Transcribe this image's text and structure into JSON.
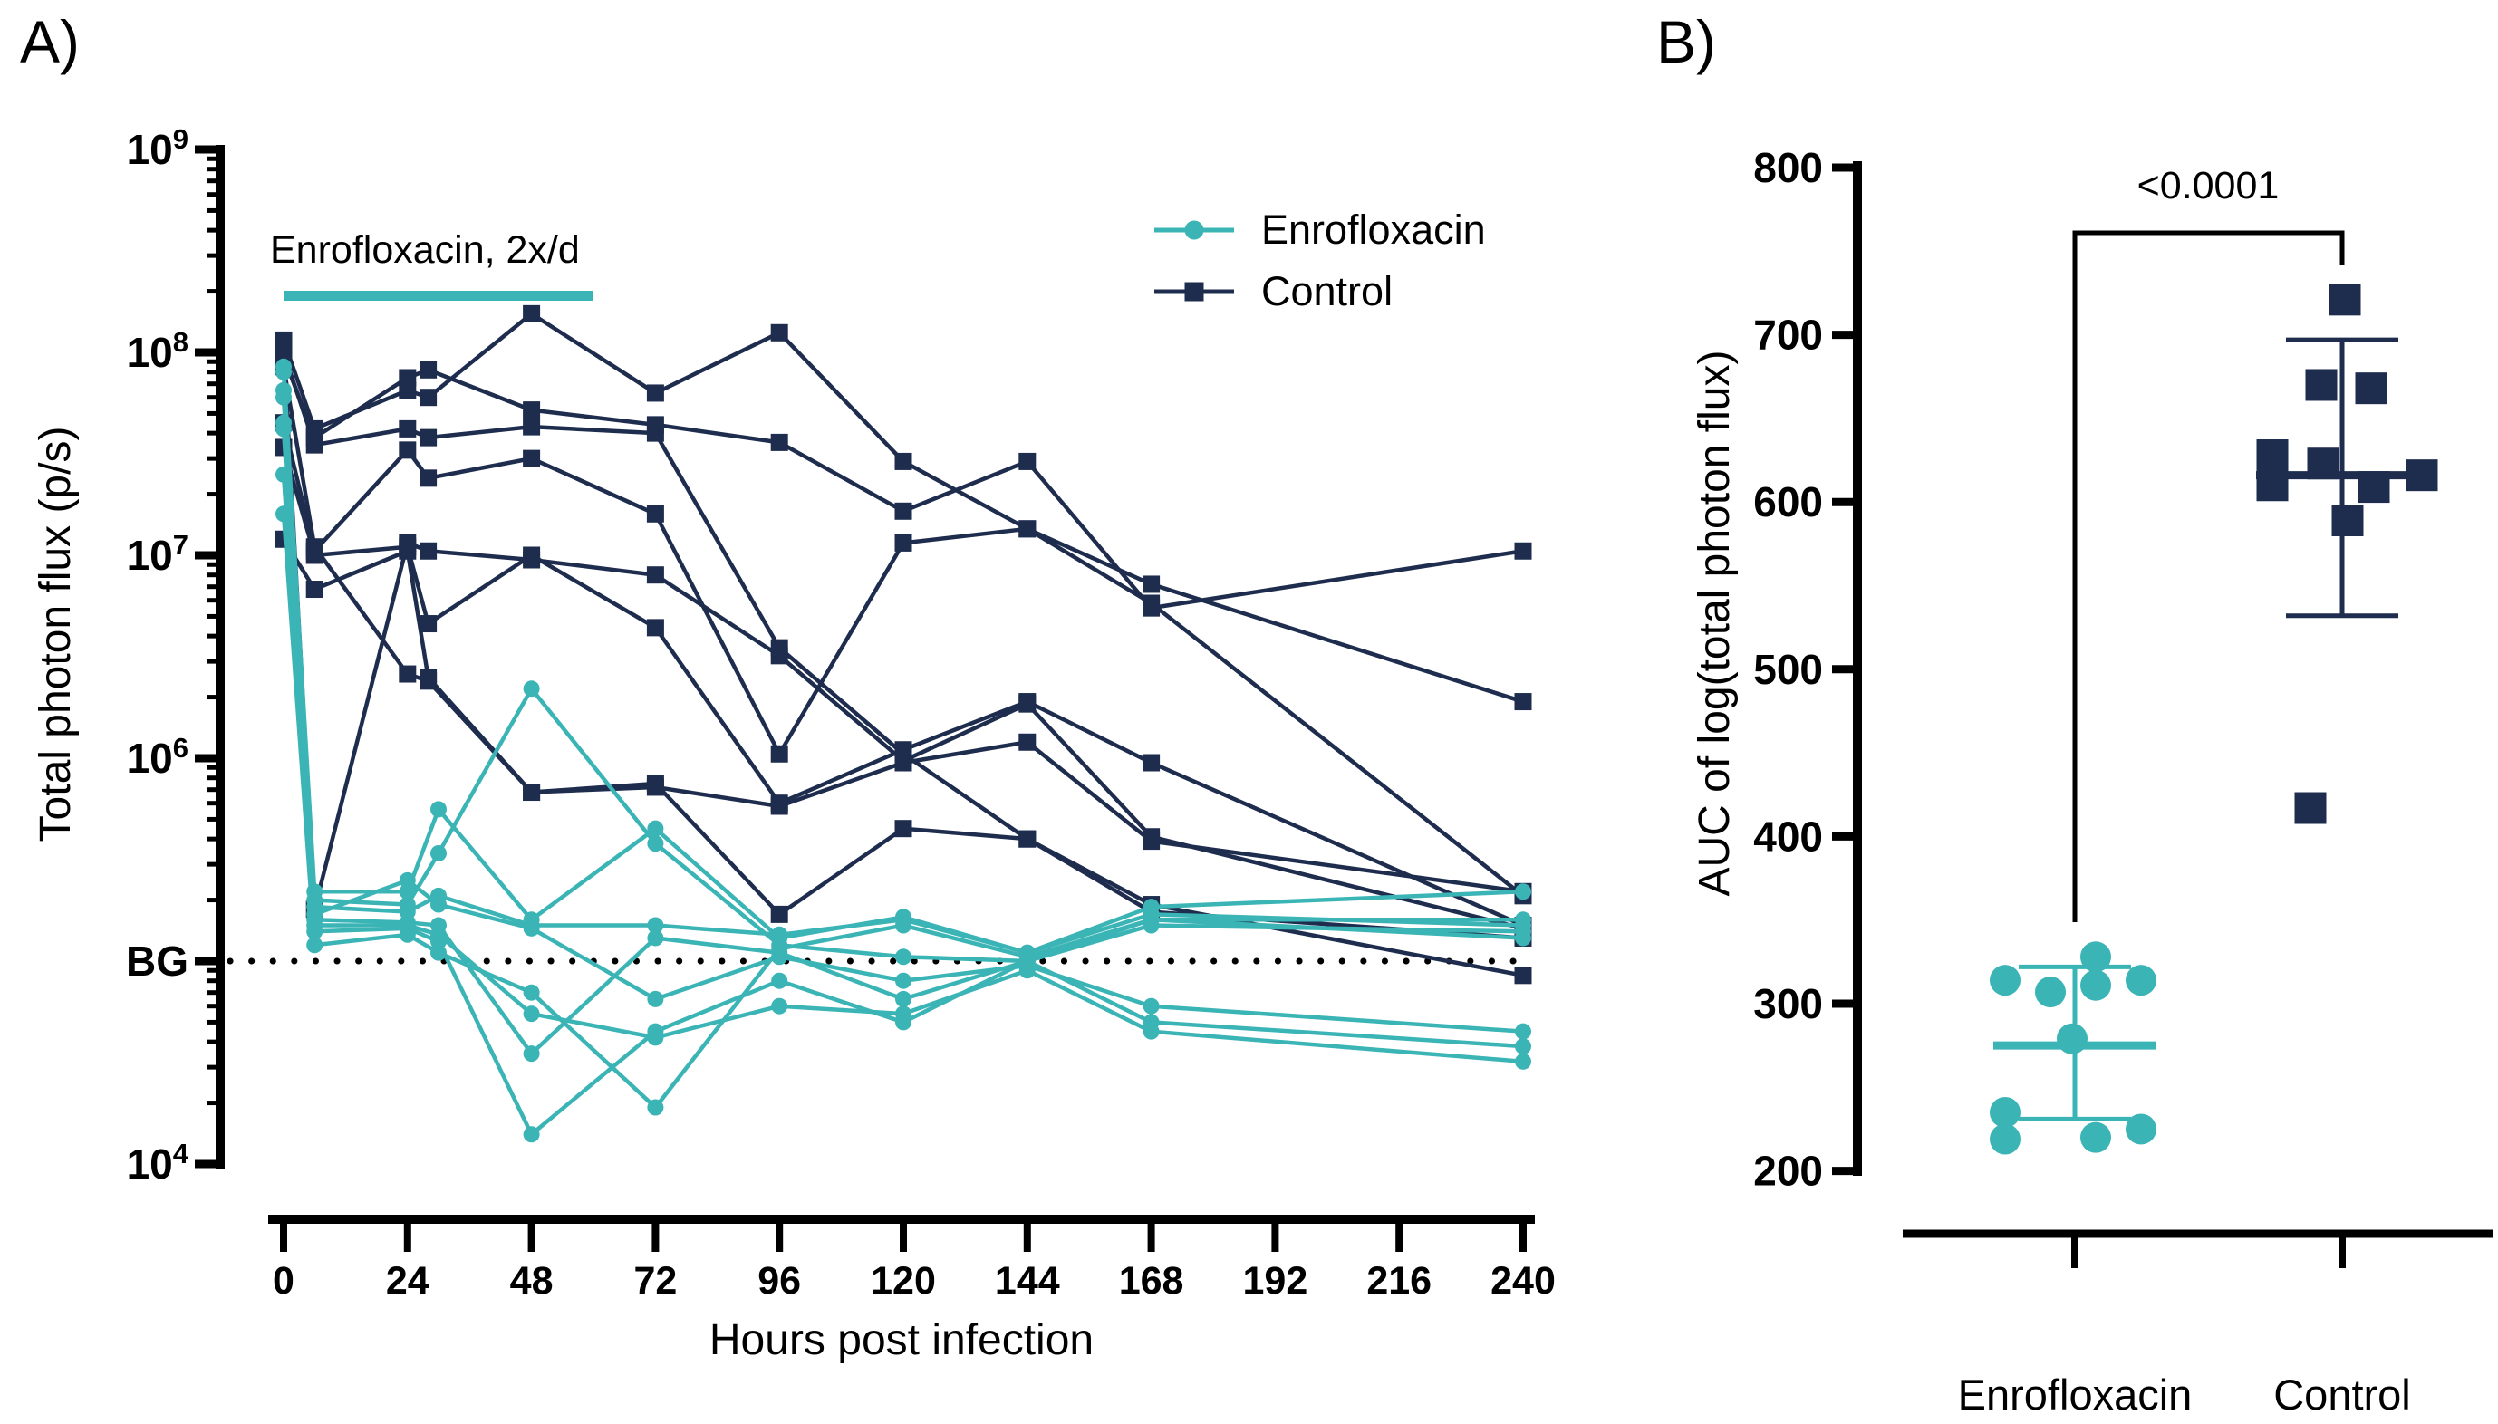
{
  "figure": {
    "panel_a_label": "A)",
    "panel_b_label": "B)",
    "colors": {
      "teal": "#3BB4B6",
      "navy": "#1E2C4E",
      "axis": "#000000"
    }
  },
  "chart_data": [
    {
      "id": "panelA",
      "type": "line",
      "xlabel": "Hours post infection",
      "ylabel": "Total photon flux (p/s)",
      "x_ticks": [
        0,
        24,
        48,
        72,
        96,
        120,
        144,
        168,
        192,
        216,
        240
      ],
      "xlim": [
        0,
        240
      ],
      "ylim_log10": [
        4,
        9
      ],
      "y_ticks": [
        {
          "base": "10",
          "exp": "9",
          "value": 1000000000.0
        },
        {
          "base": "10",
          "exp": "8",
          "value": 100000000.0
        },
        {
          "base": "10",
          "exp": "7",
          "value": 10000000.0
        },
        {
          "base": "10",
          "exp": "6",
          "value": 1000000.0
        },
        {
          "base": "BG",
          "exp": "",
          "value": 100000.0
        },
        {
          "base": "10",
          "exp": "4",
          "value": 10000.0
        }
      ],
      "bg_line_value": 100000.0,
      "treatment": {
        "label": "Enrofloxacin, 2x/d",
        "start_hour": 0,
        "end_hour": 60
      },
      "legend": [
        {
          "label": "Enrofloxacin",
          "marker": "circle",
          "color": "teal"
        },
        {
          "label": "Control",
          "marker": "square",
          "color": "navy"
        }
      ],
      "hours": {
        "enrofloxacin": [
          0,
          6,
          24,
          30,
          48,
          72,
          96,
          120,
          144,
          168,
          240
        ],
        "control": [
          0,
          6,
          24,
          28,
          48,
          72,
          96,
          120,
          144,
          168,
          240
        ]
      },
      "series": [
        {
          "group": "enrofloxacin",
          "values": [
            85000000.0,
            220000.0,
            220000.0,
            560000.0,
            160000.0,
            450000.0,
            130000.0,
            165000.0,
            110000.0,
            185000.0,
            220000.0
          ]
        },
        {
          "group": "enrofloxacin",
          "values": [
            80000000.0,
            200000.0,
            190000.0,
            340000.0,
            2200000.0,
            380000.0,
            120000.0,
            105000.0,
            100000.0,
            160000.0,
            160000.0
          ]
        },
        {
          "group": "enrofloxacin",
          "values": [
            65000000.0,
            185000.0,
            175000.0,
            210000.0,
            150000.0,
            150000.0,
            135000.0,
            160000.0,
            110000.0,
            170000.0,
            150000.0
          ]
        },
        {
          "group": "enrofloxacin",
          "values": [
            60000000.0,
            170000.0,
            250000.0,
            190000.0,
            145000.0,
            65000.0,
            105000.0,
            80000.0,
            95000.0,
            60000.0,
            45000.0
          ]
        },
        {
          "group": "enrofloxacin",
          "values": [
            45000000.0,
            160000.0,
            155000.0,
            150000.0,
            35000.0,
            130000.0,
            110000.0,
            65000.0,
            100000.0,
            50000.0,
            38000.0
          ]
        },
        {
          "group": "enrofloxacin",
          "values": [
            42000000.0,
            150000.0,
            150000.0,
            135000.0,
            55000.0,
            42000.0,
            60000.0,
            55000.0,
            90000.0,
            45000.0,
            32000.0
          ]
        },
        {
          "group": "enrofloxacin",
          "values": [
            25000000.0,
            140000.0,
            145000.0,
            125000.0,
            14000.0,
            45000.0,
            80000.0,
            50000.0,
            100000.0,
            150000.0,
            140000.0
          ]
        },
        {
          "group": "enrofloxacin",
          "values": [
            16000000.0,
            120000.0,
            135000.0,
            110000.0,
            70000.0,
            19000.0,
            115000.0,
            150000.0,
            105000.0,
            160000.0,
            130000.0
          ]
        },
        {
          "group": "control",
          "values": [
            115000000.0,
            42000000.0,
            65000000.0,
            60000000.0,
            155000000.0,
            63000000.0,
            125000000.0,
            29000000.0,
            13500000.0,
            7200000.0,
            1900000.0
          ]
        },
        {
          "group": "control",
          "values": [
            95000000.0,
            38000000.0,
            75000000.0,
            82000000.0,
            52000000.0,
            44000000.0,
            36000000.0,
            16500000.0,
            29000000.0,
            5500000.0,
            10500000.0
          ]
        },
        {
          "group": "control",
          "values": [
            45000000.0,
            10500000.0,
            33000000.0,
            24000000.0,
            30000000.0,
            16000000.0,
            1050000.0,
            11500000.0,
            13500000.0,
            5800000.0,
            210000.0
          ]
        },
        {
          "group": "control",
          "values": [
            34000000.0,
            10000000.0,
            11000000.0,
            4600000.0,
            10000000.0,
            4400000.0,
            600000.0,
            1100000.0,
            1900000.0,
            950000.0,
            150000.0
          ]
        },
        {
          "group": "control",
          "values": [
            12000000.0,
            6800000.0,
            10500000.0,
            2500000.0,
            680000.0,
            750000.0,
            170000.0,
            450000.0,
            400000.0,
            190000.0,
            85000.0
          ]
        },
        {
          "group": "control",
          "values": [
            100000000.0,
            35000000.0,
            42000000.0,
            38000000.0,
            43000000.0,
            40000000.0,
            3500000.0,
            1050000.0,
            400000.0,
            175000.0,
            130000.0
          ]
        },
        {
          "group": "control",
          "values": [
            85000000.0,
            11000000.0,
            2600000.0,
            2400000.0,
            680000.0,
            720000.0,
            580000.0,
            950000.0,
            1200000.0,
            390000.0,
            220000.0
          ]
        },
        {
          "group": "control",
          "values": [
            105000000.0,
            180000.0,
            11500000.0,
            10500000.0,
            9500000.0,
            8000000.0,
            3200000.0,
            970000.0,
            1850000.0,
            410000.0,
            145000.0
          ]
        }
      ]
    },
    {
      "id": "panelB",
      "type": "scatter",
      "ylabel": "AUC of log(total photon flux)",
      "y_ticks": [
        800,
        700,
        600,
        500,
        400,
        300,
        200
      ],
      "ylim": [
        200,
        800
      ],
      "significance_label": "<0.0001",
      "groups": [
        {
          "name": "Enrofloxacin",
          "marker": "circle",
          "color": "teal",
          "mean": 275,
          "sd_high": 322,
          "sd_low": 231,
          "points": [
            {
              "auc": 328,
              "dx": 23
            },
            {
              "auc": 314,
              "dx": -77
            },
            {
              "auc": 314,
              "dx": 73
            },
            {
              "auc": 311,
              "dx": 23
            },
            {
              "auc": 307,
              "dx": -27
            },
            {
              "auc": 279,
              "dx": -3
            },
            {
              "auc": 235,
              "dx": -77
            },
            {
              "auc": 225,
              "dx": 73
            },
            {
              "auc": 220,
              "dx": 23
            },
            {
              "auc": 219,
              "dx": -77
            }
          ]
        },
        {
          "name": "Control",
          "marker": "square",
          "color": "navy",
          "mean": 616,
          "sd_high": 697,
          "sd_low": 532,
          "points": [
            {
              "auc": 721,
              "dx": 3
            },
            {
              "auc": 670,
              "dx": -23
            },
            {
              "auc": 668,
              "dx": 32
            },
            {
              "auc": 628,
              "dx": -77
            },
            {
              "auc": 623,
              "dx": -21
            },
            {
              "auc": 616,
              "dx": 88
            },
            {
              "auc": 610,
              "dx": -77
            },
            {
              "auc": 609,
              "dx": 35
            },
            {
              "auc": 589,
              "dx": 6
            },
            {
              "auc": 417,
              "dx": -35
            }
          ]
        }
      ]
    }
  ]
}
